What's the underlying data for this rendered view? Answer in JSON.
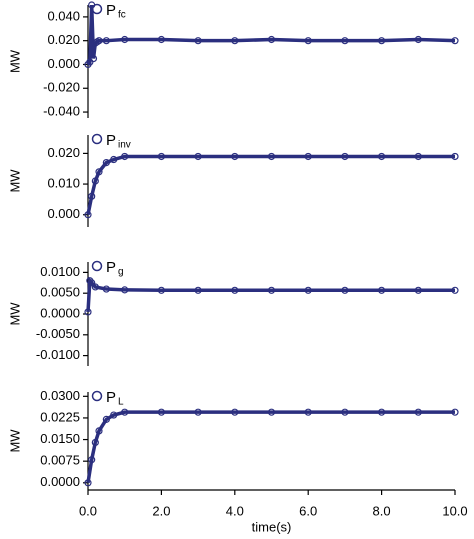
{
  "chart_data": [
    {
      "type": "line",
      "ylabel": "MW",
      "xlim": [
        0,
        10
      ],
      "ylim": [
        -0.045,
        0.05
      ],
      "yticks": [
        {
          "value": 0.04,
          "label": "0.040"
        },
        {
          "value": 0.02,
          "label": "0.020"
        },
        {
          "value": 0,
          "label": "0.000"
        },
        {
          "value": -0.02,
          "label": "-0.020"
        },
        {
          "value": -0.04,
          "label": "-0.040"
        }
      ],
      "series": [
        {
          "name": "P",
          "subscript": "fc",
          "color": "#2b2f7f",
          "x": [
            0,
            0.05,
            0.1,
            0.15,
            0.2,
            0.25,
            0.3,
            0.5,
            1,
            2,
            3,
            4,
            5,
            6,
            7,
            8,
            9,
            10
          ],
          "values": [
            0,
            0.002,
            0.05,
            0.005,
            0.018,
            0.019,
            0.02,
            0.02,
            0.021,
            0.021,
            0.02,
            0.02,
            0.021,
            0.02,
            0.02,
            0.02,
            0.021,
            0.02
          ]
        }
      ]
    },
    {
      "type": "line",
      "ylabel": "MW",
      "xlim": [
        0,
        10
      ],
      "ylim": [
        -0.004,
        0.026
      ],
      "yticks": [
        {
          "value": 0.02,
          "label": "0.020"
        },
        {
          "value": 0.01,
          "label": "0.010"
        },
        {
          "value": 0,
          "label": "0.000"
        }
      ],
      "series": [
        {
          "name": "P",
          "subscript": "inv",
          "color": "#2b2f7f",
          "x": [
            0,
            0.1,
            0.2,
            0.3,
            0.5,
            0.7,
            1,
            2,
            3,
            4,
            5,
            6,
            7,
            8,
            9,
            10
          ],
          "values": [
            0,
            0.006,
            0.011,
            0.014,
            0.017,
            0.018,
            0.019,
            0.019,
            0.019,
            0.019,
            0.019,
            0.019,
            0.019,
            0.019,
            0.019,
            0.019
          ]
        }
      ]
    },
    {
      "type": "line",
      "ylabel": "MW",
      "xlim": [
        0,
        10
      ],
      "ylim": [
        -0.0125,
        0.0125
      ],
      "yticks": [
        {
          "value": 0.01,
          "label": "0.0100"
        },
        {
          "value": 0.005,
          "label": "0.0050"
        },
        {
          "value": 0,
          "label": "0.0000"
        },
        {
          "value": -0.005,
          "label": "-0.0050"
        },
        {
          "value": -0.01,
          "label": "-0.0100"
        }
      ],
      "series": [
        {
          "name": "P",
          "subscript": "g",
          "color": "#2b2f7f",
          "x": [
            0,
            0.05,
            0.1,
            0.2,
            0.5,
            1,
            2,
            3,
            4,
            5,
            6,
            7,
            8,
            9,
            10
          ],
          "values": [
            0.0005,
            0.008,
            0.0075,
            0.0065,
            0.006,
            0.0058,
            0.0057,
            0.0057,
            0.0057,
            0.0057,
            0.0057,
            0.0057,
            0.0057,
            0.0057,
            0.0057
          ]
        }
      ]
    },
    {
      "type": "line",
      "ylabel": "MW",
      "xlabel": "time(s)",
      "xlim": [
        0,
        10
      ],
      "ylim": [
        -0.0025,
        0.0315
      ],
      "xticks": [
        {
          "value": 0,
          "label": "0.0"
        },
        {
          "value": 2,
          "label": "2.0"
        },
        {
          "value": 4,
          "label": "4.0"
        },
        {
          "value": 6,
          "label": "6.0"
        },
        {
          "value": 8,
          "label": "8.0"
        },
        {
          "value": 10,
          "label": "10.0"
        }
      ],
      "yticks": [
        {
          "value": 0.03,
          "label": "0.0300"
        },
        {
          "value": 0.0225,
          "label": "0.0225"
        },
        {
          "value": 0.015,
          "label": "0.0150"
        },
        {
          "value": 0.0075,
          "label": "0.0075"
        },
        {
          "value": 0,
          "label": "0.0000"
        }
      ],
      "series": [
        {
          "name": "P",
          "subscript": "L",
          "color": "#2b2f7f",
          "x": [
            0,
            0.1,
            0.2,
            0.3,
            0.5,
            0.7,
            1,
            2,
            3,
            4,
            5,
            6,
            7,
            8,
            9,
            10
          ],
          "values": [
            0,
            0.008,
            0.014,
            0.018,
            0.022,
            0.0235,
            0.0245,
            0.0245,
            0.0245,
            0.0245,
            0.0245,
            0.0245,
            0.0245,
            0.0245,
            0.0245,
            0.0245
          ]
        }
      ]
    }
  ]
}
